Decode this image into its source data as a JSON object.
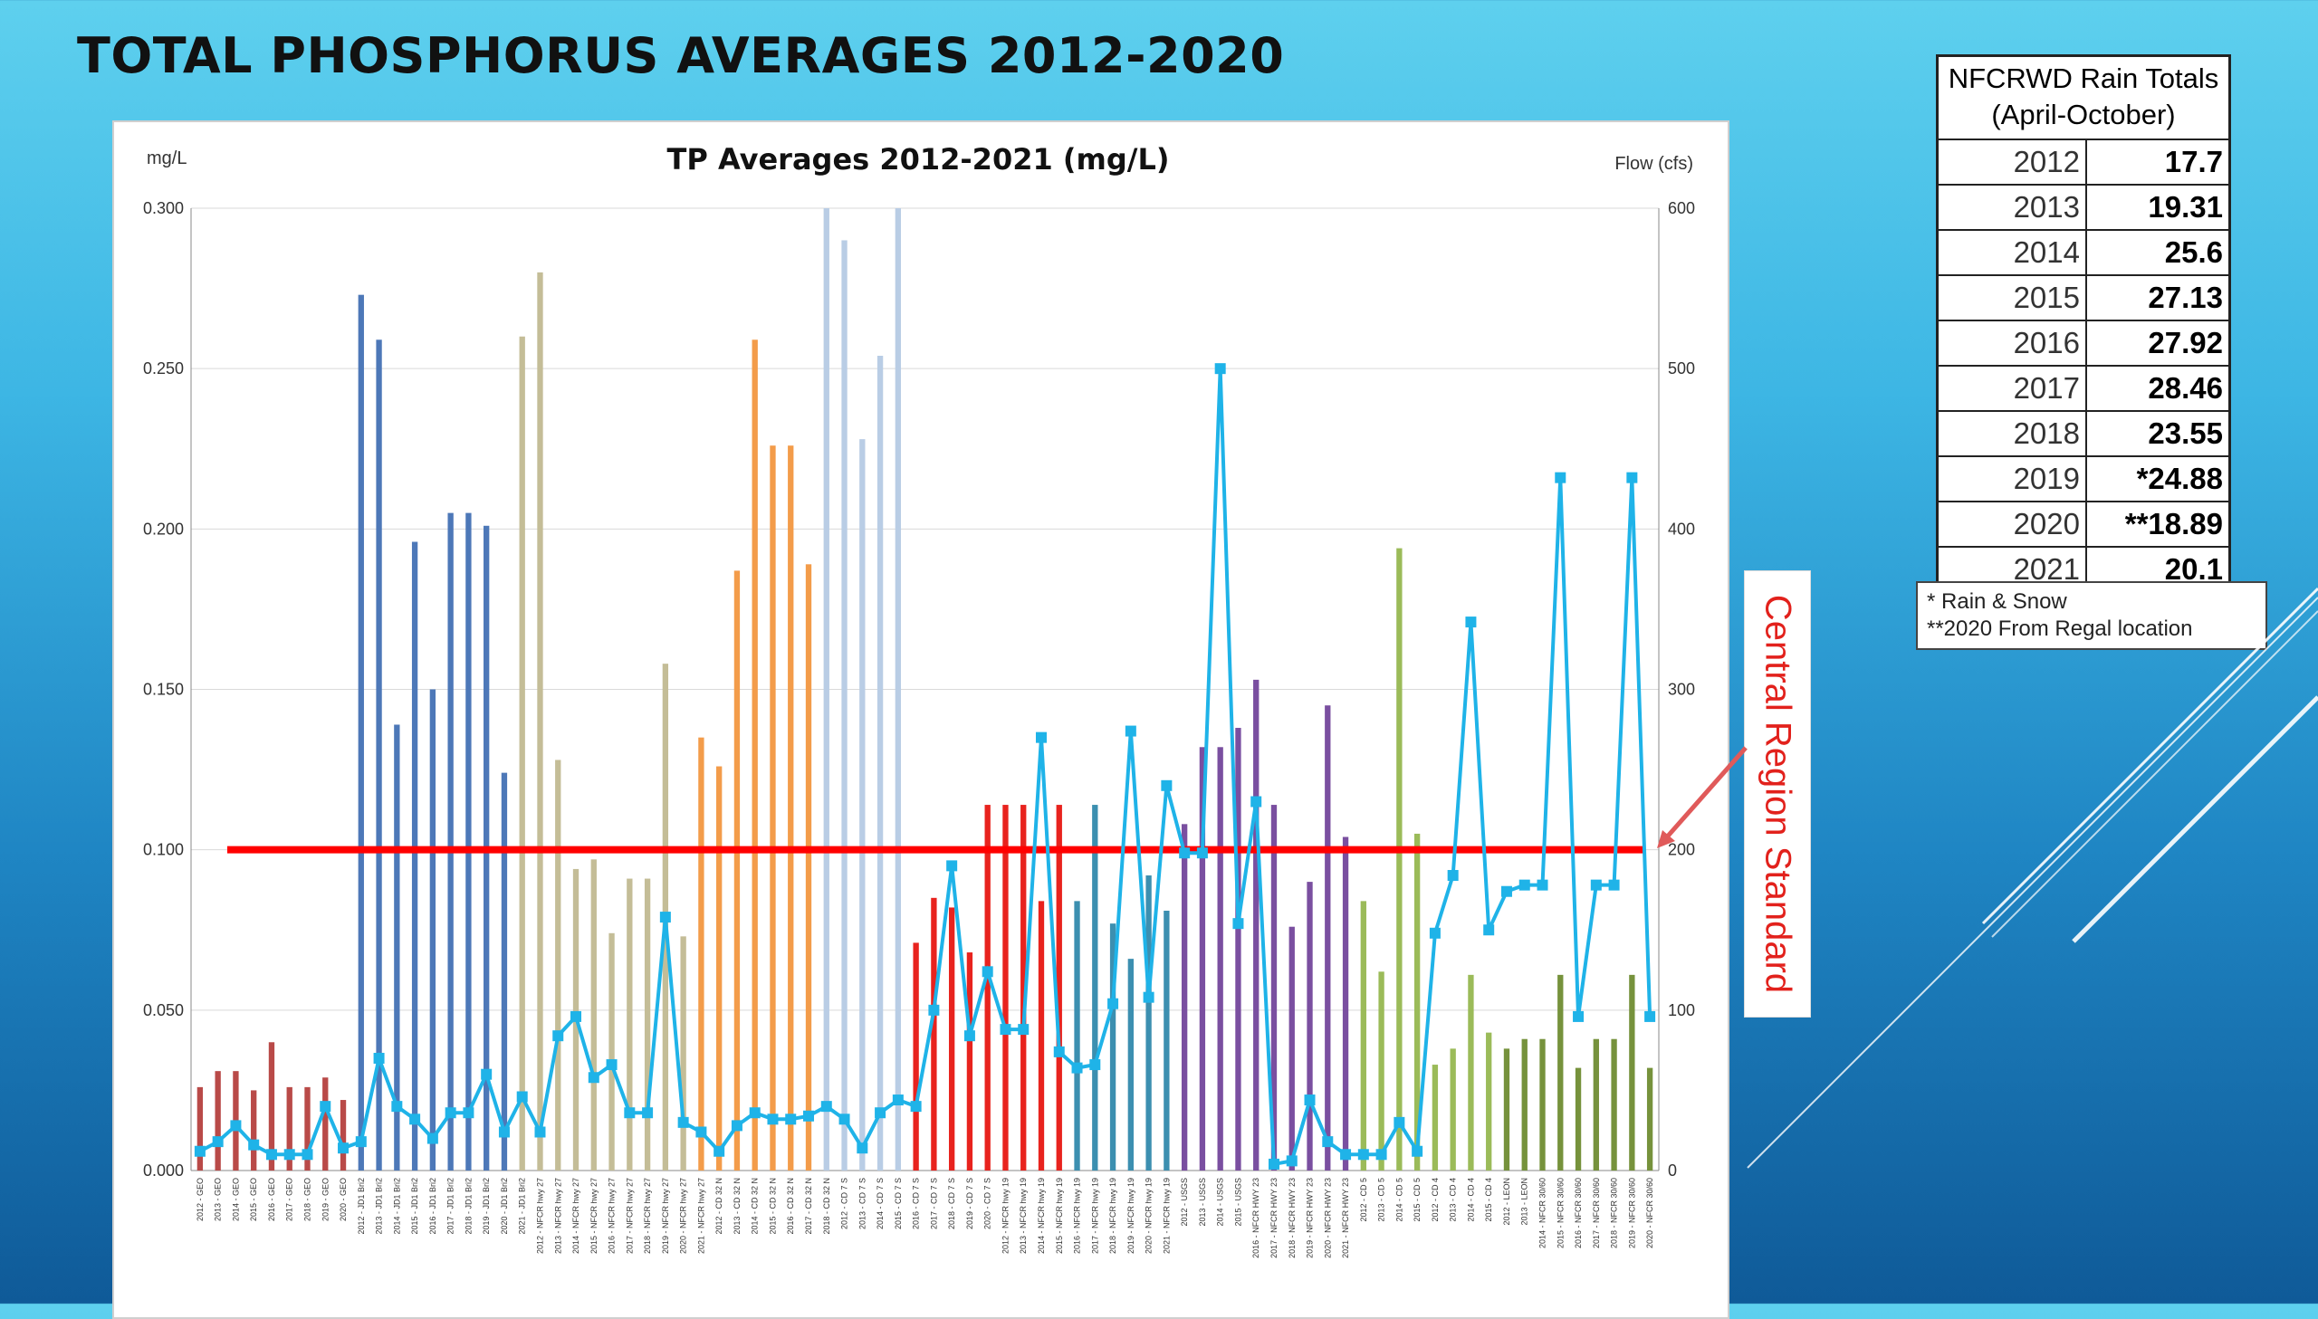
{
  "slide": {
    "title": "TOTAL PHOSPHORUS AVERAGES 2012-2020"
  },
  "rain_table": {
    "header_line1": "NFCRWD Rain Totals",
    "header_line2": "(April-October)",
    "rows": [
      {
        "year": "2012",
        "value": "17.7"
      },
      {
        "year": "2013",
        "value": "19.31"
      },
      {
        "year": "2014",
        "value": "25.6"
      },
      {
        "year": "2015",
        "value": "27.13"
      },
      {
        "year": "2016",
        "value": "27.92"
      },
      {
        "year": "2017",
        "value": "28.46"
      },
      {
        "year": "2018",
        "value": "23.55"
      },
      {
        "year": "2019",
        "value": "*24.88"
      },
      {
        "year": "2020",
        "value": "**18.89"
      },
      {
        "year": "2021",
        "value": "20.1"
      }
    ],
    "note1": "* Rain & Snow",
    "note2": "**2020 From Regal location"
  },
  "callout": {
    "label": "Central Region Standard"
  },
  "chart_data": {
    "type": "bar",
    "title": "TP Averages 2012-2021 (mg/L)",
    "ylabel": "mg/L",
    "y2label": "Flow (cfs)",
    "ylim": [
      0,
      0.3
    ],
    "y2lim": [
      0,
      600
    ],
    "yticks": [
      "0.000",
      "0.050",
      "0.100",
      "0.150",
      "0.200",
      "0.250",
      "0.300"
    ],
    "y2ticks": [
      "0",
      "100",
      "200",
      "300",
      "400",
      "500",
      "600"
    ],
    "standard": 0.1,
    "groups": [
      {
        "site": "GEO",
        "color": "#b94a48",
        "labels": [
          "2012 - GEO",
          "2013 - GEO",
          "2014 - GEO",
          "2015 - GEO",
          "2016 - GEO",
          "2017 - GEO",
          "2018 - GEO",
          "2019 - GEO",
          "2020 - GEO"
        ],
        "tp": [
          0.026,
          0.031,
          0.031,
          0.025,
          0.04,
          0.026,
          0.026,
          0.029,
          0.022
        ],
        "flow": [
          12,
          18,
          28,
          16,
          10,
          10,
          10,
          40,
          14
        ]
      },
      {
        "site": "JD1",
        "color": "#4d78b8",
        "labels": [
          "2012 - JD1 Bri2",
          "2013 - JD1 Bri2",
          "2014 - JD1 Bri2",
          "2015 - JD1 Bri2",
          "2016 - JD1 Bri2",
          "2017 - JD1 Bri2",
          "2018 - JD1 Bri2",
          "2019 - JD1 Bri2",
          "2020 - JD1 Bri2"
        ],
        "tp": [
          0.273,
          0.259,
          0.139,
          0.196,
          0.15,
          0.205,
          0.205,
          0.201,
          0.124
        ],
        "flow": [
          18,
          70,
          40,
          32,
          20,
          36,
          36,
          60,
          24
        ]
      },
      {
        "site": "NFCR hwy 27",
        "color": "#c4bd97",
        "labels": [
          "2021 - JD1 Bri2",
          "2012 - NFCR hwy 27",
          "2013 - NFCR hwy 27",
          "2014 - NFCR hwy 27",
          "2015 - NFCR hwy 27",
          "2016 - NFCR hwy 27",
          "2017 - NFCR hwy 27",
          "2018 - NFCR hwy 27",
          "2019 - NFCR hwy 27",
          "2020 - NFCR hwy 27"
        ],
        "tp": [
          0.26,
          0.28,
          0.128,
          0.094,
          0.097,
          0.074,
          0.091,
          0.091,
          0.158,
          0.073
        ],
        "flow": [
          46,
          24,
          84,
          96,
          58,
          66,
          36,
          36,
          158,
          30
        ]
      },
      {
        "site": "CD 32",
        "color": "#f39c4a",
        "labels": [
          "2021 - NFCR hwy 27",
          "2012 - CD 32 N",
          "2013 - CD 32 N",
          "2014 - CD 32 N",
          "2015 - CD 32 N",
          "2016 - CD 32 N",
          "2017 - CD 32 N"
        ],
        "tp": [
          0.135,
          0.126,
          0.187,
          0.259,
          0.226,
          0.226,
          0.189
        ],
        "flow": [
          24,
          12,
          28,
          36,
          32,
          32,
          34
        ]
      },
      {
        "site": "CD 7 S",
        "color": "#b9cde5",
        "labels": [
          "2018 - CD 32 N",
          "2012 - CD 7 S",
          "2013 - CD 7 S",
          "2014 - CD 7 S",
          "2015 - CD 7 S"
        ],
        "tp": [
          0.3,
          0.29,
          0.228,
          0.254,
          0.3
        ],
        "flow": [
          40,
          32,
          14,
          36,
          44
        ]
      },
      {
        "site": "NFCR hwy 19",
        "color": "#e8231e",
        "labels": [
          "2016 - CD 7 S",
          "2017 - CD 7 S",
          "2018 - CD 7 S",
          "2019 - CD 7 S",
          "2020 - CD 7 S",
          "2012 - NFCR hwy 19",
          "2013 - NFCR hwy 19",
          "2014 - NFCR hwy 19",
          "2015 - NFCR hwy 19"
        ],
        "tp": [
          0.071,
          0.085,
          0.082,
          0.068,
          0.114,
          0.114,
          0.114,
          0.084,
          0.114
        ],
        "flow": [
          40,
          100,
          190,
          84,
          124,
          88,
          88,
          270,
          74
        ]
      },
      {
        "site": "USGS",
        "color": "#3c8fb0",
        "labels": [
          "2016 - NFCR hwy 19",
          "2017 - NFCR hwy 19",
          "2018 - NFCR hwy 19",
          "2019 - NFCR hwy 19",
          "2020 - NFCR hwy 19",
          "2021 - NFCR hwy 19"
        ],
        "tp": [
          0.084,
          0.114,
          0.077,
          0.066,
          0.092,
          0.081
        ],
        "flow": [
          64,
          66,
          104,
          274,
          108,
          240
        ]
      },
      {
        "site": "NFCR HWY 23",
        "color": "#7a4fa0",
        "labels": [
          "2012 - USGS",
          "2013 - USGS",
          "2014 - USGS",
          "2015 - USGS",
          "2016 - NFCR HWY 23",
          "2017 - NFCR HWY 23",
          "2018 - NFCR HWY 23",
          "2019 - NFCR HWY 23",
          "2020 - NFCR HWY 23",
          "2021 - NFCR HWY 23"
        ],
        "tp": [
          0.108,
          0.132,
          0.132,
          0.138,
          0.153,
          0.114,
          0.076,
          0.09,
          0.145,
          0.104
        ],
        "flow": [
          198,
          198,
          500,
          154,
          230,
          4,
          6,
          44,
          18,
          10
        ]
      },
      {
        "site": "CD 4",
        "color": "#9bbb59",
        "labels": [
          "2012 - CD 5",
          "2013 - CD 5",
          "2014 - CD 5",
          "2015 - CD 5",
          "2012 - CD 4",
          "2013 - CD 4",
          "2014 - CD 4",
          "2015 - CD 4"
        ],
        "tp": [
          0.084,
          0.062,
          0.194,
          0.105,
          0.033,
          0.038,
          0.061,
          0.043
        ],
        "flow": [
          10,
          10,
          30,
          12,
          148,
          184,
          342,
          150
        ]
      },
      {
        "site": "NFCR 30/60",
        "color": "#76923c",
        "labels": [
          "2012 - LEON",
          "2013 - LEON",
          "2014 - NFCR 30/60",
          "2015 - NFCR 30/60",
          "2016 - NFCR 30/60",
          "2017 - NFCR 30/60",
          "2018 - NFCR 30/60",
          "2019 - NFCR 30/60",
          "2020 - NFCR 30/60"
        ],
        "tp": [
          0.038,
          0.041,
          0.041,
          0.061,
          0.032,
          0.041,
          0.041,
          0.061,
          0.032
        ],
        "flow": [
          174,
          178,
          178,
          432,
          96,
          178,
          178,
          432,
          96
        ]
      }
    ]
  }
}
